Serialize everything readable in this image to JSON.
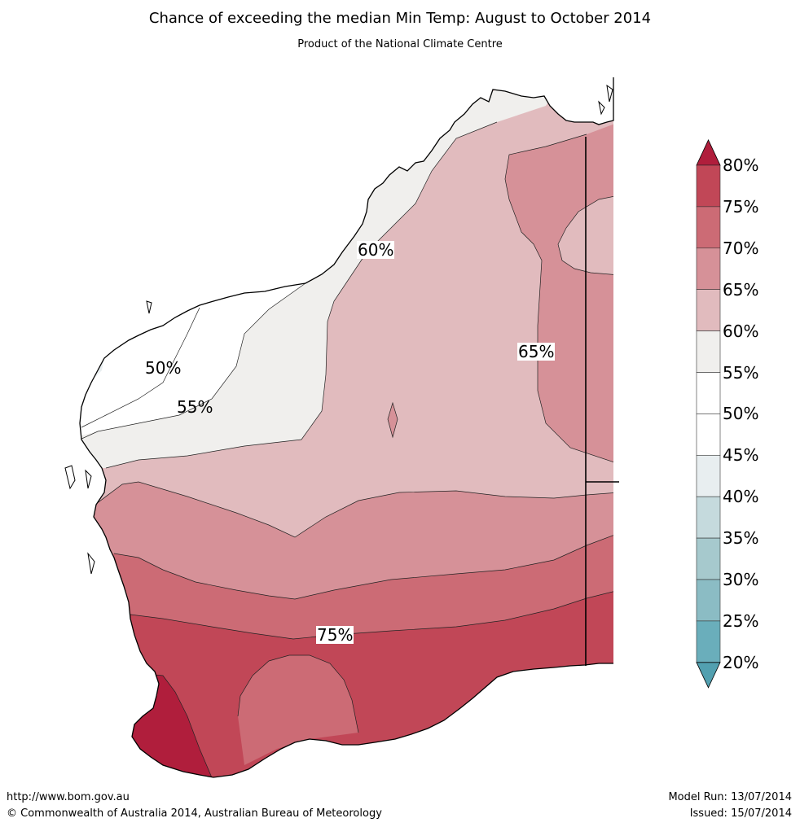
{
  "header": {
    "title": "Chance of exceeding the median Min Temp: August to October 2014",
    "subtitle": "Product of the National Climate Centre"
  },
  "map": {
    "region": "Western Australia",
    "colors": {
      "c50_55": "#ffffff",
      "c55_60": "#f0efed",
      "c60_65": "#e1bbbe",
      "c65_70": "#d69198",
      "c70_75": "#cc6b75",
      "c75_80": "#c14757",
      "c80": "#b01e3c",
      "c40_45": "#e8eef0"
    },
    "contour_labels": [
      {
        "text": "50%"
      },
      {
        "text": "55%"
      },
      {
        "text": "60%"
      },
      {
        "text": "65%"
      },
      {
        "text": "75%"
      }
    ]
  },
  "colorbar": {
    "levels": [
      "80%",
      "75%",
      "70%",
      "65%",
      "60%",
      "55%",
      "50%",
      "45%",
      "40%",
      "35%",
      "30%",
      "25%",
      "20%"
    ],
    "segment_colors": [
      "#c14757",
      "#cc6b75",
      "#d69198",
      "#e1bbbe",
      "#f0efed",
      "#ffffff",
      "#ffffff",
      "#e8eef0",
      "#c5dadd",
      "#a6c9cd",
      "#8bbcc4",
      "#6aaebb"
    ],
    "top_arrow_color": "#b01e3c",
    "bottom_arrow_color": "#52a0b0"
  },
  "footer": {
    "url": "http://www.bom.gov.au",
    "copyright": "©  Commonwealth of Australia 2014, Australian Bureau of Meteorology",
    "model_run": "Model Run: 13/07/2014",
    "issued": "Issued: 15/07/2014"
  }
}
